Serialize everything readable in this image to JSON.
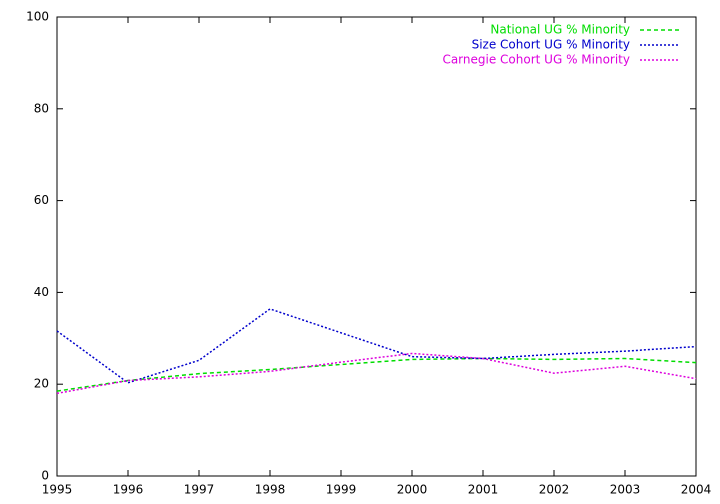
{
  "chart_data": {
    "type": "line",
    "x": [
      1995,
      1996,
      1997,
      1998,
      1999,
      2000,
      2001,
      2002,
      2003,
      2004
    ],
    "series": [
      {
        "name": "National UG % Minority",
        "color": "#00dd00",
        "style": "dashed",
        "values": [
          18.5,
          20.8,
          22.3,
          23.2,
          24.3,
          25.4,
          25.6,
          25.4,
          25.6,
          24.7
        ]
      },
      {
        "name": "Size Cohort UG % Minority",
        "color": "#0000cc",
        "style": "dotted",
        "values": [
          31.6,
          20.3,
          25.2,
          36.4,
          31.2,
          26.0,
          25.6,
          26.5,
          27.2,
          28.2
        ]
      },
      {
        "name": "Carnegie Cohort UG % Minority",
        "color": "#dd00dd",
        "style": "dotted",
        "values": [
          18.0,
          20.8,
          21.6,
          22.8,
          24.8,
          26.7,
          25.6,
          22.4,
          23.9,
          21.2
        ]
      }
    ],
    "xlim": [
      1995,
      2004
    ],
    "xticks": [
      1995,
      1996,
      1997,
      1998,
      1999,
      2000,
      2001,
      2002,
      2003,
      2004
    ],
    "ylim": [
      0,
      100
    ],
    "yticks": [
      0,
      20,
      40,
      60,
      80,
      100
    ],
    "grid": false,
    "legend": "top-right"
  }
}
